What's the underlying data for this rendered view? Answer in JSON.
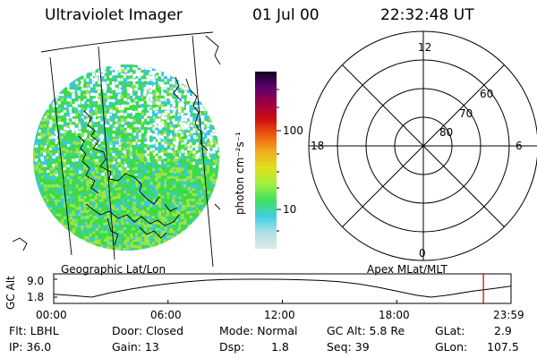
{
  "header": {
    "instrument": "Ultraviolet Imager",
    "date": "01 Jul 00",
    "time": "22:32:48 UT"
  },
  "image_panel": {
    "label": "Geographic Lat/Lon",
    "colors": {
      "green": "#3cdc3c",
      "lime": "#a0e63c",
      "cyan": "#3cc8dc",
      "white": "#ffffff"
    }
  },
  "colorbar": {
    "label": "photon cm⁻²s⁻¹",
    "tick_labels": [
      "100",
      "10"
    ],
    "stops": [
      "#e0e8e8",
      "#b0e0e8",
      "#40d0e0",
      "#40e060",
      "#a0f040",
      "#e0e020",
      "#f0b020",
      "#f06010",
      "#d01010",
      "#a00040",
      "#600070",
      "#100020"
    ]
  },
  "polar_plot": {
    "label": "Apex MLat/MLT",
    "mlt_labels": {
      "top": "12",
      "right": "6",
      "bottom": "0",
      "left": "18"
    },
    "lat_labels": [
      "60",
      "70",
      "80"
    ]
  },
  "chart_data": {
    "type": "line",
    "title": "",
    "ylabel": "GC Alt",
    "yticks": [
      "9.0",
      "1.8"
    ],
    "ylim": [
      1.8,
      9.0
    ],
    "xlim": [
      0,
      24
    ],
    "xtick_labels": [
      "00:00",
      "06:00",
      "12:00",
      "18:00",
      "23:59"
    ],
    "xticks": [
      0,
      6,
      12,
      18,
      24
    ],
    "series": [
      {
        "x": [
          0,
          1,
          2,
          3,
          4,
          5,
          6,
          7,
          8,
          9,
          10,
          11,
          12,
          13,
          14,
          15,
          16,
          17,
          18,
          19,
          19.8,
          20.5,
          21,
          22,
          23,
          23.98
        ],
        "y": [
          3.0,
          2.4,
          1.8,
          3.6,
          5.0,
          6.2,
          7.2,
          8.0,
          8.6,
          8.9,
          9.0,
          9.0,
          8.95,
          8.8,
          8.5,
          8.0,
          7.1,
          5.8,
          4.2,
          2.6,
          1.8,
          2.4,
          3.0,
          4.2,
          5.2,
          6.2
        ]
      }
    ],
    "marker_time": 22.55,
    "marker_color": "#c00000"
  },
  "info": {
    "flt": "Flt: LBHL",
    "ip": "IP: 36.0",
    "door": "Door: Closed",
    "gain": "Gain: 13",
    "mode": "Mode: Normal",
    "dsp_label": "Dsp:",
    "dsp_value": "1.8",
    "gc_alt": "GC Alt: 5.8 Re",
    "seq": "Seq: 39",
    "glat_label": "GLat:",
    "glat_value": "2.9",
    "glon_label": "GLon:",
    "glon_value": "107.5"
  }
}
